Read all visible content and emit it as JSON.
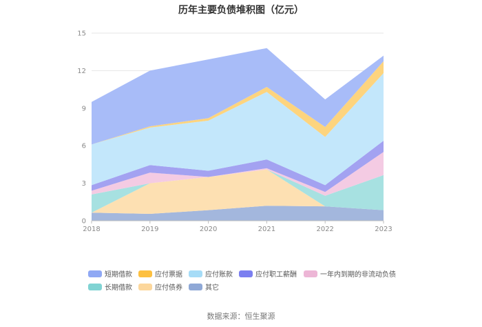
{
  "chart_data": {
    "type": "area",
    "stacked": true,
    "title": "历年主要负债堆积图（亿元）",
    "x": [
      "2018",
      "2019",
      "2020",
      "2021",
      "2022",
      "2023"
    ],
    "ylim": [
      0,
      15
    ],
    "yticks": [
      "0",
      "3",
      "6",
      "9",
      "12",
      "15"
    ],
    "grid": true,
    "legend_position": "bottom",
    "series": [
      {
        "name": "其它",
        "color": "#a3b7dd",
        "values": [
          0.65,
          0.55,
          0.85,
          1.2,
          1.15,
          0.85
        ]
      },
      {
        "name": "应付债券",
        "color": "#fde0b2",
        "values": [
          0.0,
          2.45,
          2.65,
          2.9,
          0.0,
          0.0
        ]
      },
      {
        "name": "长期借款",
        "color": "#a7e1e1",
        "values": [
          1.45,
          0.0,
          0.0,
          0.0,
          0.85,
          2.8
        ]
      },
      {
        "name": "一年内到期的非流动负债",
        "color": "#f4cbe3",
        "values": [
          0.3,
          0.85,
          0.0,
          0.1,
          0.3,
          1.85
        ]
      },
      {
        "name": "应付职工薪酬",
        "color": "#a3a2f1",
        "values": [
          0.45,
          0.6,
          0.5,
          0.7,
          0.55,
          0.9
        ]
      },
      {
        "name": "应付账款",
        "color": "#c3e7fb",
        "values": [
          3.25,
          3.0,
          4.0,
          5.4,
          3.85,
          5.4
        ]
      },
      {
        "name": "应付票据",
        "color": "#fdd47e",
        "values": [
          0.0,
          0.1,
          0.2,
          0.4,
          0.8,
          0.95
        ]
      },
      {
        "name": "短期借款",
        "color": "#a8bcf8",
        "values": [
          3.4,
          4.45,
          4.7,
          3.1,
          2.2,
          0.45
        ]
      }
    ]
  },
  "legend": [
    {
      "label": "短期借款",
      "color": "#8fa8f4"
    },
    {
      "label": "应付票据",
      "color": "#fdc040"
    },
    {
      "label": "应付账款",
      "color": "#a6dcf7"
    },
    {
      "label": "应付职工薪酬",
      "color": "#7b7ff0"
    },
    {
      "label": "一年内到期的非流动负债",
      "color": "#edb6d6"
    },
    {
      "label": "长期借款",
      "color": "#80d3d3"
    },
    {
      "label": "应付债券",
      "color": "#fcd79c"
    },
    {
      "label": "其它",
      "color": "#8fa8d6"
    }
  ],
  "source": "数据来源：恒生聚源"
}
